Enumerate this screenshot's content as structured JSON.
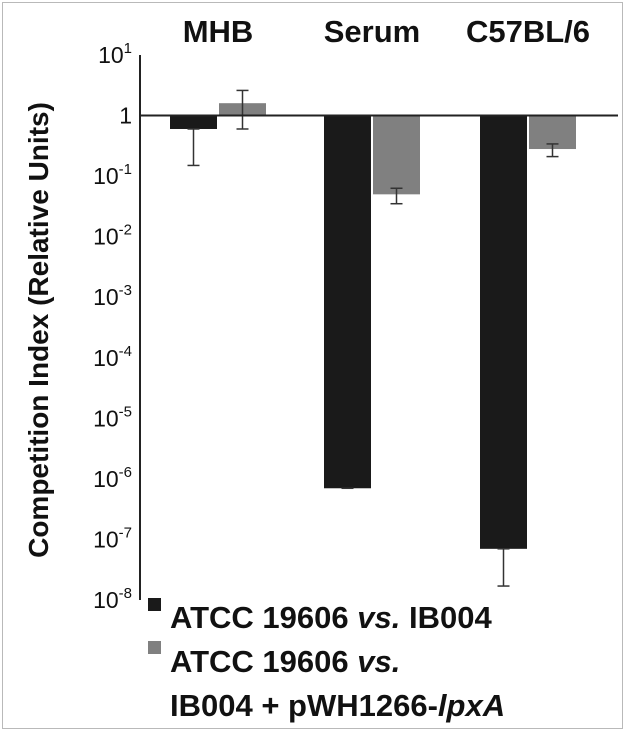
{
  "chart_data": {
    "type": "bar",
    "log_scale": true,
    "categories": [
      "MHB",
      "Serum",
      "C57BL/6"
    ],
    "ylabel": "Competition Index (Relative Units)",
    "yticks": [
      {
        "base": "10",
        "exp": "1"
      },
      {
        "base": "1",
        "exp": ""
      },
      {
        "base": "10",
        "exp": "-1"
      },
      {
        "base": "10",
        "exp": "-2"
      },
      {
        "base": "10",
        "exp": "-3"
      },
      {
        "base": "10",
        "exp": "-4"
      },
      {
        "base": "10",
        "exp": "-5"
      },
      {
        "base": "10",
        "exp": "-6"
      },
      {
        "base": "10",
        "exp": "-7"
      },
      {
        "base": "10",
        "exp": "-8"
      }
    ],
    "ylim": [
      1e-08,
      10
    ],
    "series": [
      {
        "name_parts": [
          "ATCC 19606 ",
          "vs.",
          " IB004"
        ],
        "color": "#1a1a1a",
        "values": [
          0.6,
          7e-07,
          7e-08
        ],
        "err_low": [
          0.15,
          7e-07,
          1.7e-08
        ],
        "err_high": [
          0.6,
          7e-07,
          7e-08
        ]
      },
      {
        "name_parts": [
          "ATCC 19606 ",
          "vs.",
          "",
          "IB004 + pWH1266-",
          "lpxA"
        ],
        "color": "#808080",
        "values": [
          1.6,
          0.05,
          0.28
        ],
        "err_low": [
          0.6,
          0.035,
          0.21
        ],
        "err_high": [
          2.6,
          0.063,
          0.34
        ]
      }
    ],
    "legend_position": "bottom",
    "grid": false
  }
}
